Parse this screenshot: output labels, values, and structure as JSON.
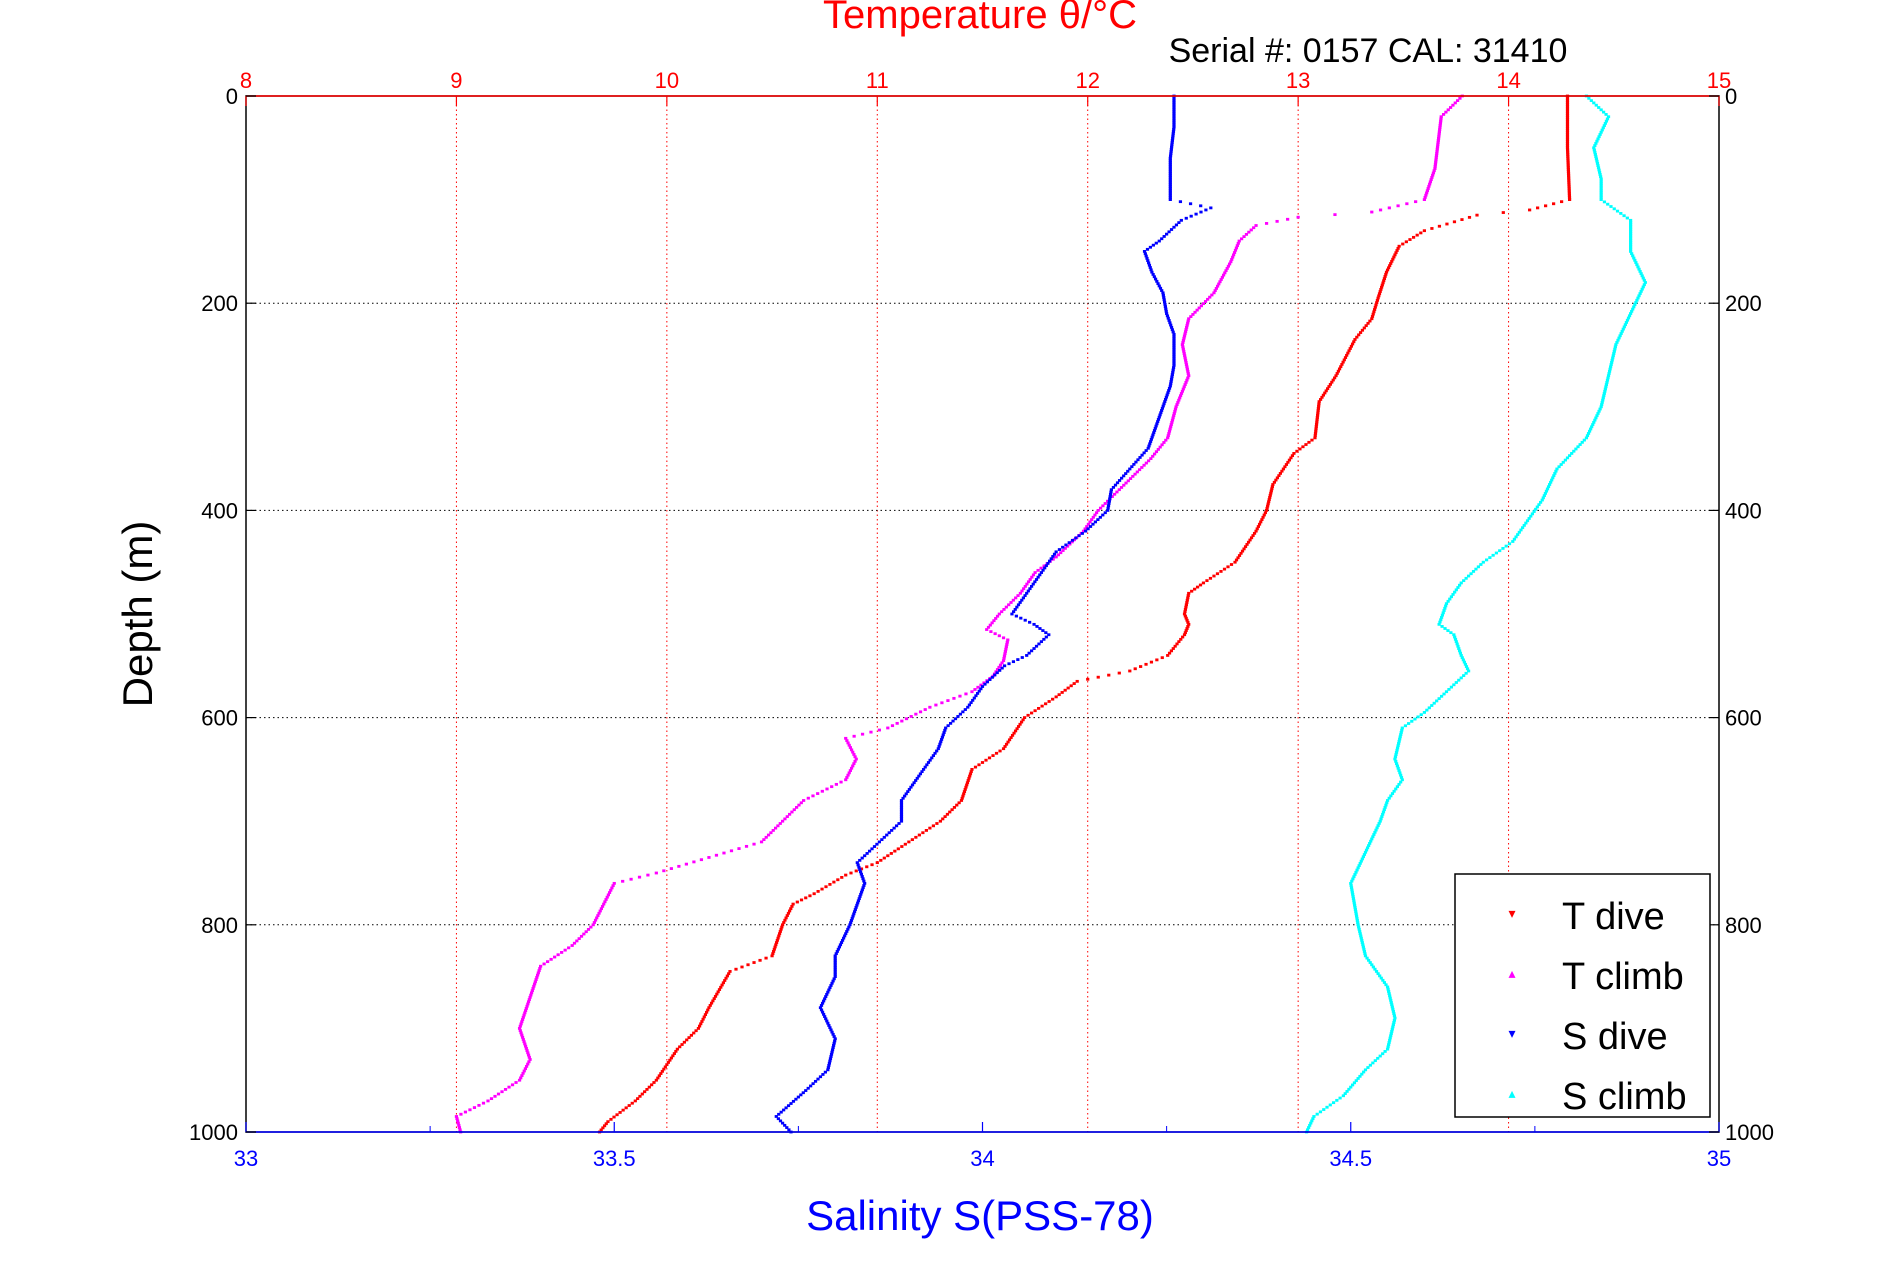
{
  "chart_data": {
    "type": "scatter",
    "title": "Temperature θ/°C",
    "subtitle": "Serial #: 0157  CAL: 31410",
    "ylabel": "Depth (m)",
    "xlabel_bottom": "Salinity S(PSS-78)",
    "x_top": {
      "label": "Temperature θ/°C",
      "lim": [
        8,
        15
      ],
      "ticks": [
        "8",
        "9",
        "10",
        "11",
        "12",
        "13",
        "14",
        "15"
      ],
      "color": "#ff0000"
    },
    "x_bottom": {
      "label": "Salinity S(PSS-78)",
      "lim": [
        33,
        35
      ],
      "ticks": [
        "33",
        "33.5",
        "34",
        "34.5",
        "35"
      ],
      "color": "#0000ff"
    },
    "y": {
      "lim": [
        0,
        1000
      ],
      "reversed": true,
      "ticks": [
        "0",
        "200",
        "400",
        "600",
        "800",
        "1000"
      ]
    },
    "grid": true,
    "legend_position": "bottom-right",
    "series": [
      {
        "name": "T dive",
        "axis": "temperature",
        "color": "#ff0000",
        "marker": "▾",
        "points": [
          [
            14.28,
            0
          ],
          [
            14.28,
            50
          ],
          [
            14.29,
            100
          ],
          [
            14.1,
            110
          ],
          [
            13.85,
            115
          ],
          [
            13.6,
            130
          ],
          [
            13.48,
            145
          ],
          [
            13.42,
            170
          ],
          [
            13.38,
            195
          ],
          [
            13.35,
            215
          ],
          [
            13.27,
            235
          ],
          [
            13.18,
            270
          ],
          [
            13.1,
            295
          ],
          [
            13.08,
            330
          ],
          [
            12.98,
            345
          ],
          [
            12.88,
            375
          ],
          [
            12.85,
            400
          ],
          [
            12.8,
            420
          ],
          [
            12.7,
            450
          ],
          [
            12.55,
            470
          ],
          [
            12.48,
            480
          ],
          [
            12.46,
            500
          ],
          [
            12.48,
            510
          ],
          [
            12.46,
            520
          ],
          [
            12.38,
            540
          ],
          [
            12.2,
            555
          ],
          [
            11.95,
            565
          ],
          [
            11.85,
            580
          ],
          [
            11.7,
            600
          ],
          [
            11.6,
            630
          ],
          [
            11.45,
            650
          ],
          [
            11.4,
            680
          ],
          [
            11.3,
            700
          ],
          [
            11.15,
            720
          ],
          [
            11.0,
            740
          ],
          [
            10.85,
            752
          ],
          [
            10.7,
            770
          ],
          [
            10.6,
            780
          ],
          [
            10.55,
            800
          ],
          [
            10.5,
            830
          ],
          [
            10.3,
            845
          ],
          [
            10.2,
            880
          ],
          [
            10.15,
            900
          ],
          [
            10.05,
            920
          ],
          [
            9.95,
            950
          ],
          [
            9.85,
            970
          ],
          [
            9.72,
            990
          ],
          [
            9.68,
            1000
          ]
        ]
      },
      {
        "name": "T climb",
        "axis": "temperature",
        "color": "#ff00ff",
        "marker": "▴",
        "points": [
          [
            13.78,
            0
          ],
          [
            13.68,
            20
          ],
          [
            13.65,
            70
          ],
          [
            13.6,
            100
          ],
          [
            13.35,
            112
          ],
          [
            13.0,
            117
          ],
          [
            12.8,
            125
          ],
          [
            12.72,
            140
          ],
          [
            12.68,
            160
          ],
          [
            12.6,
            190
          ],
          [
            12.48,
            215
          ],
          [
            12.45,
            240
          ],
          [
            12.48,
            270
          ],
          [
            12.42,
            300
          ],
          [
            12.38,
            330
          ],
          [
            12.3,
            350
          ],
          [
            12.15,
            380
          ],
          [
            12.05,
            400
          ],
          [
            11.98,
            420
          ],
          [
            11.85,
            445
          ],
          [
            11.75,
            460
          ],
          [
            11.68,
            480
          ],
          [
            11.58,
            500
          ],
          [
            11.52,
            515
          ],
          [
            11.62,
            525
          ],
          [
            11.6,
            545
          ],
          [
            11.55,
            560
          ],
          [
            11.45,
            575
          ],
          [
            11.25,
            590
          ],
          [
            11.05,
            610
          ],
          [
            10.85,
            620
          ],
          [
            10.9,
            640
          ],
          [
            10.85,
            660
          ],
          [
            10.65,
            680
          ],
          [
            10.55,
            700
          ],
          [
            10.45,
            720
          ],
          [
            10.2,
            735
          ],
          [
            9.95,
            750
          ],
          [
            9.75,
            760
          ],
          [
            9.7,
            780
          ],
          [
            9.65,
            800
          ],
          [
            9.55,
            820
          ],
          [
            9.4,
            840
          ],
          [
            9.35,
            870
          ],
          [
            9.3,
            900
          ],
          [
            9.35,
            930
          ],
          [
            9.3,
            950
          ],
          [
            9.15,
            970
          ],
          [
            9.0,
            985
          ],
          [
            9.02,
            1000
          ]
        ]
      },
      {
        "name": "S dive",
        "axis": "salinity",
        "color": "#0000ff",
        "marker": "▾",
        "points": [
          [
            34.26,
            0
          ],
          [
            34.26,
            30
          ],
          [
            34.255,
            60
          ],
          [
            34.255,
            100
          ],
          [
            34.31,
            108
          ],
          [
            34.27,
            120
          ],
          [
            34.24,
            140
          ],
          [
            34.22,
            150
          ],
          [
            34.23,
            170
          ],
          [
            34.245,
            190
          ],
          [
            34.25,
            210
          ],
          [
            34.26,
            230
          ],
          [
            34.26,
            260
          ],
          [
            34.255,
            280
          ],
          [
            34.24,
            310
          ],
          [
            34.225,
            340
          ],
          [
            34.2,
            360
          ],
          [
            34.175,
            380
          ],
          [
            34.17,
            400
          ],
          [
            34.14,
            420
          ],
          [
            34.1,
            440
          ],
          [
            34.08,
            460
          ],
          [
            34.06,
            480
          ],
          [
            34.04,
            500
          ],
          [
            34.07,
            510
          ],
          [
            34.09,
            520
          ],
          [
            34.06,
            540
          ],
          [
            34.03,
            550
          ],
          [
            34.0,
            570
          ],
          [
            33.98,
            590
          ],
          [
            33.95,
            610
          ],
          [
            33.94,
            630
          ],
          [
            33.92,
            650
          ],
          [
            33.89,
            680
          ],
          [
            33.89,
            700
          ],
          [
            33.86,
            720
          ],
          [
            33.83,
            740
          ],
          [
            33.84,
            760
          ],
          [
            33.82,
            800
          ],
          [
            33.8,
            830
          ],
          [
            33.8,
            850
          ],
          [
            33.78,
            880
          ],
          [
            33.8,
            910
          ],
          [
            33.79,
            940
          ],
          [
            33.76,
            960
          ],
          [
            33.72,
            985
          ],
          [
            33.74,
            1000
          ]
        ]
      },
      {
        "name": "S climb",
        "axis": "salinity",
        "color": "#00ffff",
        "marker": "▴",
        "points": [
          [
            34.82,
            0
          ],
          [
            34.85,
            20
          ],
          [
            34.83,
            50
          ],
          [
            34.84,
            80
          ],
          [
            34.84,
            100
          ],
          [
            34.88,
            120
          ],
          [
            34.88,
            150
          ],
          [
            34.9,
            180
          ],
          [
            34.88,
            210
          ],
          [
            34.86,
            240
          ],
          [
            34.85,
            270
          ],
          [
            34.84,
            300
          ],
          [
            34.82,
            330
          ],
          [
            34.78,
            360
          ],
          [
            34.76,
            390
          ],
          [
            34.74,
            410
          ],
          [
            34.72,
            430
          ],
          [
            34.68,
            450
          ],
          [
            34.65,
            470
          ],
          [
            34.63,
            490
          ],
          [
            34.62,
            510
          ],
          [
            34.64,
            520
          ],
          [
            34.65,
            540
          ],
          [
            34.66,
            555
          ],
          [
            34.63,
            575
          ],
          [
            34.6,
            595
          ],
          [
            34.57,
            610
          ],
          [
            34.56,
            640
          ],
          [
            34.57,
            660
          ],
          [
            34.55,
            680
          ],
          [
            34.54,
            700
          ],
          [
            34.52,
            730
          ],
          [
            34.5,
            760
          ],
          [
            34.51,
            800
          ],
          [
            34.52,
            830
          ],
          [
            34.55,
            860
          ],
          [
            34.56,
            890
          ],
          [
            34.55,
            920
          ],
          [
            34.52,
            940
          ],
          [
            34.49,
            965
          ],
          [
            34.45,
            985
          ],
          [
            34.44,
            1000
          ]
        ]
      }
    ]
  }
}
